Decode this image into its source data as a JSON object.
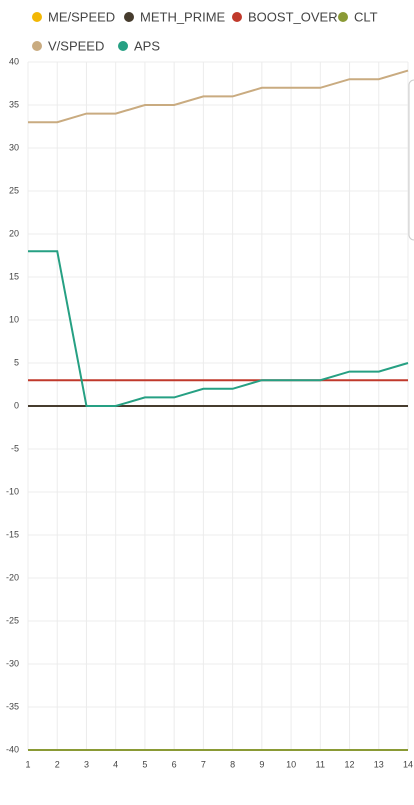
{
  "chart_data": {
    "type": "line",
    "x": [
      1,
      2,
      3,
      4,
      5,
      6,
      7,
      8,
      9,
      10,
      11,
      12,
      13,
      14
    ],
    "series": [
      {
        "name": "ME/SPEED",
        "color": "#f2b705",
        "values": [
          0,
          0,
          0,
          0,
          0,
          0,
          0,
          0,
          0,
          0,
          0,
          0,
          0,
          0
        ]
      },
      {
        "name": "METH_PRIME",
        "color": "#463c2e",
        "values": [
          0,
          0,
          0,
          0,
          0,
          0,
          0,
          0,
          0,
          0,
          0,
          0,
          0,
          0
        ]
      },
      {
        "name": "BOOST_OVER",
        "color": "#c0392b",
        "values": [
          3,
          3,
          3,
          3,
          3,
          3,
          3,
          3,
          3,
          3,
          3,
          3,
          3,
          3
        ]
      },
      {
        "name": "CLT",
        "color": "#8a9a35",
        "values": [
          -40,
          -40,
          -40,
          -40,
          -40,
          -40,
          -40,
          -40,
          -40,
          -40,
          -40,
          -40,
          -40,
          -40
        ]
      },
      {
        "name": "V/SPEED",
        "color": "#c9ab80",
        "values": [
          33,
          33,
          34,
          34,
          35,
          35,
          36,
          36,
          37,
          37,
          37,
          38,
          38,
          39
        ]
      },
      {
        "name": "APS",
        "color": "#26a083",
        "values": [
          18,
          18,
          0,
          0,
          1,
          1,
          2,
          2,
          3,
          3,
          3,
          4,
          4,
          5
        ]
      }
    ],
    "xlim": [
      1,
      14
    ],
    "xticks": [
      1,
      2,
      3,
      4,
      5,
      6,
      7,
      8,
      9,
      10,
      11,
      12,
      13,
      14
    ],
    "ylim": [
      -40,
      40
    ],
    "yticks": [
      -40,
      -35,
      -30,
      -25,
      -20,
      -15,
      -10,
      -5,
      0,
      5,
      10,
      15,
      20,
      25,
      30,
      35,
      40
    ],
    "grid": true
  }
}
